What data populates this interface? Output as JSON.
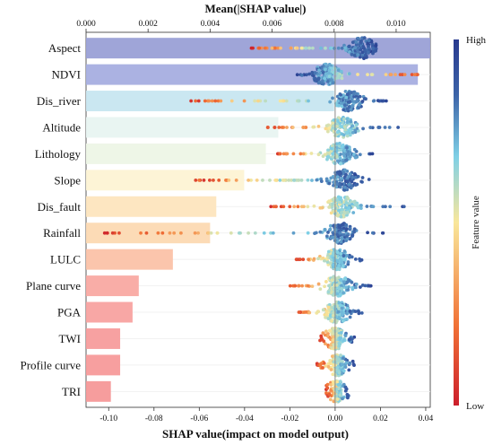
{
  "chart_data": {
    "type": "bar",
    "top_axis": {
      "title": "Mean(|SHAP value|)",
      "ticks": [
        0.0,
        0.002,
        0.004,
        0.006,
        0.008,
        0.01
      ],
      "tick_labels": [
        "0.000",
        "0.002",
        "0.004",
        "0.006",
        "0.008",
        "0.010"
      ],
      "xlim": [
        0,
        0.0111
      ]
    },
    "bottom_axis": {
      "title": "SHAP value(impact on model output)",
      "ticks": [
        -0.1,
        -0.08,
        -0.06,
        -0.04,
        -0.02,
        0.0,
        0.02,
        0.04
      ],
      "tick_labels": [
        "-0.10",
        "-0.08",
        "-0.06",
        "-0.04",
        "-0.02",
        "0.00",
        "0.02",
        "0.04"
      ],
      "xlim": [
        -0.11,
        0.042
      ]
    },
    "categories": [
      "Aspect",
      "NDVI",
      "Dis_river",
      "Altitude",
      "Lithology",
      "Slope",
      "Dis_fault",
      "Rainfall",
      "LULC",
      "Plane curve",
      "PGA",
      "TWI",
      "Profile curve",
      "TRI"
    ],
    "values": [
      0.0111,
      0.0107,
      0.008,
      0.0062,
      0.0058,
      0.0051,
      0.0042,
      0.004,
      0.0028,
      0.0017,
      0.0015,
      0.0011,
      0.0011,
      0.0008
    ],
    "bar_colors": [
      "#9aa0d6",
      "#a6aee0",
      "#c7e6f0",
      "#e8f4f1",
      "#edf5e6",
      "#fdf3d4",
      "#fde5be",
      "#fcd9b2",
      "#fbc2a8",
      "#f9a9a2",
      "#f8a2a0",
      "#f79c9c",
      "#f79a9a",
      "#f69898"
    ],
    "beeswarm": [
      {
        "feature": "Aspect",
        "low": -0.037,
        "high": 0.018,
        "center": 0.012
      },
      {
        "feature": "NDVI",
        "low": -0.018,
        "high": 0.037,
        "center": -0.004
      },
      {
        "feature": "Dis_river",
        "low": -0.064,
        "high": 0.025,
        "center": 0.006
      },
      {
        "feature": "Altitude",
        "low": -0.03,
        "high": 0.028,
        "center": 0.003
      },
      {
        "feature": "Lithology",
        "low": -0.027,
        "high": 0.018,
        "center": 0.002
      },
      {
        "feature": "Slope",
        "low": -0.062,
        "high": 0.015,
        "center": 0.004
      },
      {
        "feature": "Dis_fault",
        "low": -0.03,
        "high": 0.032,
        "center": 0.003
      },
      {
        "feature": "Rainfall",
        "low": -0.104,
        "high": 0.025,
        "center": 0.002
      },
      {
        "feature": "LULC",
        "low": -0.018,
        "high": 0.012,
        "center": 0.001
      },
      {
        "feature": "Plane curve",
        "low": -0.02,
        "high": 0.016,
        "center": 0.001
      },
      {
        "feature": "PGA",
        "low": -0.016,
        "high": 0.012,
        "center": 0.001
      },
      {
        "feature": "TWI",
        "low": -0.007,
        "high": 0.009,
        "center": 0.0
      },
      {
        "feature": "Profile curve",
        "low": -0.008,
        "high": 0.009,
        "center": 0.001
      },
      {
        "feature": "TRI",
        "low": -0.004,
        "high": 0.006,
        "center": 0.001
      }
    ],
    "colorbar": {
      "title": "Feature value",
      "high_label": "High",
      "low_label": "Low",
      "colors": [
        "#cc1f2c",
        "#f17236",
        "#f9e79b",
        "#7fd0e6",
        "#3c63a8",
        "#283a8f"
      ]
    },
    "grid": true,
    "zero_line": true
  }
}
